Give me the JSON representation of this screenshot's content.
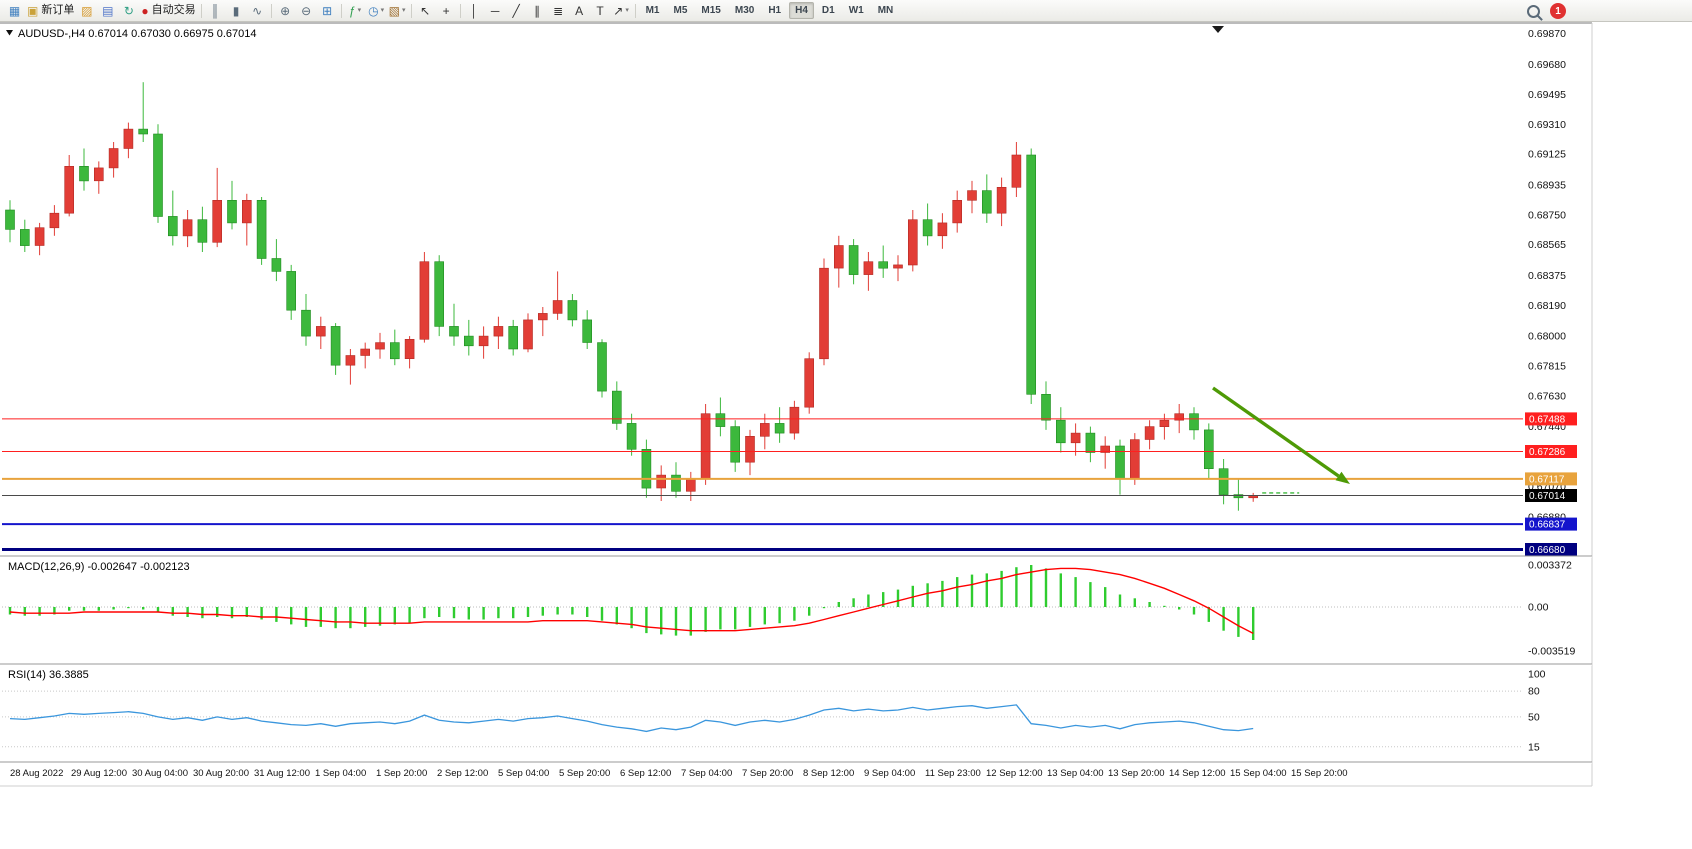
{
  "toolbar": {
    "notification_count": "1",
    "active_timeframe": "H4",
    "timeframes": [
      "M1",
      "M5",
      "M15",
      "M30",
      "H1",
      "H4",
      "D1",
      "W1",
      "MN"
    ],
    "items": [
      {
        "name": "chart-window-icon",
        "glyph": "▦",
        "color": "#3f7fbf"
      },
      {
        "name": "new-order-button",
        "glyph": "▣",
        "color": "#caa23a",
        "label": "新订单"
      },
      {
        "name": "scripts-icon",
        "glyph": "▨",
        "color": "#d79b2f"
      },
      {
        "name": "market-watch-icon",
        "glyph": "▤",
        "color": "#4f74c9"
      },
      {
        "name": "refresh-icon",
        "glyph": "↻",
        "color": "#2f9f84"
      },
      {
        "name": "autotrade-button",
        "glyph": "●",
        "color": "#cc2222",
        "label": "自动交易"
      },
      {
        "sep": true
      },
      {
        "name": "bar-chart-icon",
        "glyph": "║",
        "color": "#5a6b7a"
      },
      {
        "name": "candlestick-chart-icon",
        "glyph": "▮",
        "color": "#5a6b7a"
      },
      {
        "name": "line-chart-icon",
        "glyph": "∿",
        "color": "#5a6b7a"
      },
      {
        "sep": true
      },
      {
        "name": "zoom-in-icon",
        "glyph": "⊕",
        "color": "#5a6b7a"
      },
      {
        "name": "zoom-out-icon",
        "glyph": "⊖",
        "color": "#5a6b7a"
      },
      {
        "name": "tile-windows-icon",
        "glyph": "⊞",
        "color": "#3f7fbf"
      },
      {
        "sep": true
      },
      {
        "name": "indicators-icon",
        "glyph": "ƒ",
        "color": "#2f9f4f",
        "dropdown": true
      },
      {
        "name": "periods-icon",
        "glyph": "◷",
        "color": "#3f7fbf",
        "dropdown": true
      },
      {
        "name": "templates-icon",
        "glyph": "▧",
        "color": "#9f6f2f",
        "dropdown": true
      },
      {
        "sep": true
      },
      {
        "name": "cursor-icon",
        "glyph": "↖",
        "color": "#333333"
      },
      {
        "name": "crosshair-icon",
        "glyph": "+",
        "color": "#333333"
      },
      {
        "sep": true
      },
      {
        "name": "vertical-line-icon",
        "glyph": "│",
        "color": "#333333"
      },
      {
        "name": "horizontal-line-icon",
        "glyph": "─",
        "color": "#333333"
      },
      {
        "name": "trendline-icon",
        "glyph": "╱",
        "color": "#333333"
      },
      {
        "name": "channel-icon",
        "glyph": "∥",
        "color": "#333333"
      },
      {
        "name": "fibonacci-icon",
        "glyph": "≣",
        "color": "#333333"
      },
      {
        "name": "text-icon",
        "glyph": "A",
        "color": "#333333"
      },
      {
        "name": "label-icon",
        "glyph": "T",
        "color": "#333333"
      },
      {
        "name": "arrows-icon",
        "glyph": "↗",
        "color": "#333333",
        "dropdown": true
      },
      {
        "sep": true
      }
    ]
  },
  "chart": {
    "symbol": "AUDUSD-,H4",
    "ohlc_line": "0.67014 0.67030 0.66975 0.67014"
  },
  "chart_data": {
    "type": "candlestick",
    "title": "AUDUSD-,H4",
    "timeframe": "H4",
    "price_range": [
      0.6664,
      0.6993
    ],
    "colors": {
      "up": "#e23d36",
      "down": "#3cb83c"
    },
    "y_axis_labels": [
      "0.69870",
      "0.69680",
      "0.69495",
      "0.69310",
      "0.69125",
      "0.68935",
      "0.68750",
      "0.68565",
      "0.68375",
      "0.68190",
      "0.68000",
      "0.67815",
      "0.67630",
      "0.67440",
      "0.67070",
      "0.66880"
    ],
    "time_labels": [
      "28 Aug 2022",
      "29 Aug 12:00",
      "30 Aug 04:00",
      "30 Aug 20:00",
      "31 Aug 12:00",
      "1 Sep 04:00",
      "1 Sep 20:00",
      "2 Sep 12:00",
      "5 Sep 04:00",
      "5 Sep 20:00",
      "6 Sep 12:00",
      "7 Sep 04:00",
      "7 Sep 20:00",
      "8 Sep 12:00",
      "9 Sep 04:00",
      "11 Sep 23:00",
      "12 Sep 12:00",
      "13 Sep 04:00",
      "13 Sep 20:00",
      "14 Sep 12:00",
      "15 Sep 04:00",
      "15 Sep 20:00"
    ],
    "hlines": [
      {
        "price": 0.67488,
        "color": "#ff1f1f",
        "label": "0.67488",
        "width": 1
      },
      {
        "price": 0.67286,
        "color": "#ff1f1f",
        "label": "0.67286",
        "width": 1
      },
      {
        "price": 0.67117,
        "color": "#e8a33d",
        "label": "0.67117",
        "width": 2
      },
      {
        "price": 0.67014,
        "color": "#4a4a4a",
        "label": "0.67014",
        "width": 1,
        "label_bg": "#000000"
      },
      {
        "price": 0.66837,
        "color": "#1414cc",
        "label": "0.66837",
        "width": 2
      },
      {
        "price": 0.6668,
        "color": "#000080",
        "label": "0.66680",
        "width": 3
      }
    ],
    "candles": [
      [
        0.6878,
        0.6884,
        0.6858,
        0.6866
      ],
      [
        0.6866,
        0.6872,
        0.6852,
        0.6856
      ],
      [
        0.6856,
        0.687,
        0.685,
        0.6867
      ],
      [
        0.6867,
        0.6881,
        0.6862,
        0.6876
      ],
      [
        0.6876,
        0.6912,
        0.6874,
        0.6905
      ],
      [
        0.6905,
        0.6916,
        0.689,
        0.6896
      ],
      [
        0.6896,
        0.6908,
        0.6888,
        0.6904
      ],
      [
        0.6904,
        0.692,
        0.6898,
        0.6916
      ],
      [
        0.6916,
        0.6932,
        0.691,
        0.6928
      ],
      [
        0.6928,
        0.6957,
        0.692,
        0.6925
      ],
      [
        0.6925,
        0.6931,
        0.687,
        0.6874
      ],
      [
        0.6874,
        0.689,
        0.6856,
        0.6862
      ],
      [
        0.6862,
        0.6878,
        0.6855,
        0.6872
      ],
      [
        0.6872,
        0.688,
        0.6852,
        0.6858
      ],
      [
        0.6858,
        0.6904,
        0.6855,
        0.6884
      ],
      [
        0.6884,
        0.6896,
        0.6866,
        0.687
      ],
      [
        0.687,
        0.6888,
        0.6856,
        0.6884
      ],
      [
        0.6884,
        0.6886,
        0.6844,
        0.6848
      ],
      [
        0.6848,
        0.686,
        0.6834,
        0.684
      ],
      [
        0.684,
        0.6844,
        0.681,
        0.6816
      ],
      [
        0.6816,
        0.6826,
        0.6794,
        0.68
      ],
      [
        0.68,
        0.6812,
        0.6792,
        0.6806
      ],
      [
        0.6806,
        0.6808,
        0.6776,
        0.6782
      ],
      [
        0.6782,
        0.6792,
        0.677,
        0.6788
      ],
      [
        0.6788,
        0.6796,
        0.678,
        0.6792
      ],
      [
        0.6792,
        0.6802,
        0.6786,
        0.6796
      ],
      [
        0.6796,
        0.6804,
        0.6782,
        0.6786
      ],
      [
        0.6786,
        0.68,
        0.678,
        0.6798
      ],
      [
        0.6798,
        0.6852,
        0.6796,
        0.6846
      ],
      [
        0.6846,
        0.685,
        0.68,
        0.6806
      ],
      [
        0.6806,
        0.682,
        0.6794,
        0.68
      ],
      [
        0.68,
        0.681,
        0.6788,
        0.6794
      ],
      [
        0.6794,
        0.6806,
        0.6786,
        0.68
      ],
      [
        0.68,
        0.6812,
        0.6792,
        0.6806
      ],
      [
        0.6806,
        0.681,
        0.6788,
        0.6792
      ],
      [
        0.6792,
        0.6814,
        0.679,
        0.681
      ],
      [
        0.681,
        0.6818,
        0.68,
        0.6814
      ],
      [
        0.6814,
        0.684,
        0.681,
        0.6822
      ],
      [
        0.6822,
        0.6826,
        0.6806,
        0.681
      ],
      [
        0.681,
        0.6816,
        0.6792,
        0.6796
      ],
      [
        0.6796,
        0.6798,
        0.6762,
        0.6766
      ],
      [
        0.6766,
        0.6772,
        0.6742,
        0.6746
      ],
      [
        0.6746,
        0.6752,
        0.6726,
        0.673
      ],
      [
        0.673,
        0.6736,
        0.67,
        0.6706
      ],
      [
        0.6706,
        0.672,
        0.6698,
        0.6714
      ],
      [
        0.6714,
        0.6722,
        0.67,
        0.6704
      ],
      [
        0.6704,
        0.6716,
        0.6698,
        0.6712
      ],
      [
        0.6712,
        0.6758,
        0.6708,
        0.6752
      ],
      [
        0.6752,
        0.6762,
        0.6738,
        0.6744
      ],
      [
        0.6744,
        0.6748,
        0.6716,
        0.6722
      ],
      [
        0.6722,
        0.6742,
        0.6714,
        0.6738
      ],
      [
        0.6738,
        0.6752,
        0.673,
        0.6746
      ],
      [
        0.6746,
        0.6756,
        0.6734,
        0.674
      ],
      [
        0.674,
        0.676,
        0.6736,
        0.6756
      ],
      [
        0.6756,
        0.679,
        0.6752,
        0.6786
      ],
      [
        0.6786,
        0.6848,
        0.6782,
        0.6842
      ],
      [
        0.6842,
        0.6862,
        0.683,
        0.6856
      ],
      [
        0.6856,
        0.686,
        0.6832,
        0.6838
      ],
      [
        0.6838,
        0.6852,
        0.6828,
        0.6846
      ],
      [
        0.6846,
        0.6856,
        0.6836,
        0.6842
      ],
      [
        0.6842,
        0.685,
        0.6834,
        0.6844
      ],
      [
        0.6844,
        0.6878,
        0.684,
        0.6872
      ],
      [
        0.6872,
        0.6882,
        0.6856,
        0.6862
      ],
      [
        0.6862,
        0.6876,
        0.6854,
        0.687
      ],
      [
        0.687,
        0.689,
        0.6864,
        0.6884
      ],
      [
        0.6884,
        0.6896,
        0.6876,
        0.689
      ],
      [
        0.689,
        0.69,
        0.687,
        0.6876
      ],
      [
        0.6876,
        0.6898,
        0.6868,
        0.6892
      ],
      [
        0.6892,
        0.692,
        0.6886,
        0.6912
      ],
      [
        0.6912,
        0.6916,
        0.6758,
        0.6764
      ],
      [
        0.6764,
        0.6772,
        0.6742,
        0.6748
      ],
      [
        0.6748,
        0.6756,
        0.6728,
        0.6734
      ],
      [
        0.6734,
        0.6746,
        0.6726,
        0.674
      ],
      [
        0.674,
        0.6744,
        0.6722,
        0.6728
      ],
      [
        0.6728,
        0.6738,
        0.6718,
        0.6732
      ],
      [
        0.6732,
        0.6736,
        0.6702,
        0.6712
      ],
      [
        0.6712,
        0.674,
        0.6708,
        0.6736
      ],
      [
        0.6736,
        0.6748,
        0.673,
        0.6744
      ],
      [
        0.6744,
        0.6752,
        0.6736,
        0.6748
      ],
      [
        0.6748,
        0.6758,
        0.674,
        0.6752
      ],
      [
        0.6752,
        0.6756,
        0.6736,
        0.6742
      ],
      [
        0.6742,
        0.6746,
        0.6712,
        0.6718
      ],
      [
        0.6718,
        0.6724,
        0.6696,
        0.6702
      ],
      [
        0.6702,
        0.6712,
        0.6692,
        0.67
      ],
      [
        0.67,
        0.6703,
        0.66975,
        0.67014
      ]
    ],
    "indicators": [
      {
        "type": "bar+line",
        "name": "MACD(12,26,9)",
        "values_label": "-0.002647 -0.002123",
        "axis_labels": [
          "0.003372",
          "0.00",
          "-0.003519"
        ],
        "axis_values": [
          0.003372,
          0,
          -0.003519
        ],
        "colors": {
          "histogram": "#2fcc2f",
          "signal": "#ff0000"
        },
        "histogram": [
          -0.0006,
          -0.0007,
          -0.0007,
          -0.0006,
          -0.0003,
          -0.0003,
          -0.0003,
          -0.0002,
          -0.0001,
          -0.0002,
          -0.0004,
          -0.0007,
          -0.0008,
          -0.0009,
          -0.0008,
          -0.0009,
          -0.0008,
          -0.001,
          -0.0012,
          -0.0014,
          -0.0016,
          -0.0016,
          -0.0017,
          -0.0017,
          -0.0016,
          -0.0015,
          -0.0014,
          -0.0013,
          -0.0009,
          -0.0008,
          -0.0009,
          -0.001,
          -0.001,
          -0.0009,
          -0.0009,
          -0.0008,
          -0.0007,
          -0.0006,
          -0.0006,
          -0.0008,
          -0.0011,
          -0.0014,
          -0.0017,
          -0.0021,
          -0.0022,
          -0.0023,
          -0.0023,
          -0.002,
          -0.0018,
          -0.0018,
          -0.0016,
          -0.0014,
          -0.0013,
          -0.0011,
          -0.0007,
          -0.0001,
          0.0004,
          0.0007,
          0.001,
          0.0012,
          0.0014,
          0.0017,
          0.0019,
          0.0021,
          0.0024,
          0.0026,
          0.0027,
          0.0029,
          0.0032,
          0.00337,
          0.0031,
          0.0027,
          0.0024,
          0.002,
          0.0016,
          0.001,
          0.0007,
          0.0004,
          0.0001,
          -0.0002,
          -0.0006,
          -0.0012,
          -0.0019,
          -0.0024,
          -0.002647
        ],
        "signal": [
          -0.0004,
          -0.0005,
          -0.0005,
          -0.0005,
          -0.0005,
          -0.0004,
          -0.0004,
          -0.0004,
          -0.0004,
          -0.0004,
          -0.0004,
          -0.0005,
          -0.0005,
          -0.0006,
          -0.0006,
          -0.0007,
          -0.0007,
          -0.0008,
          -0.0008,
          -0.0009,
          -0.001,
          -0.0011,
          -0.0012,
          -0.0012,
          -0.0013,
          -0.0013,
          -0.0013,
          -0.0013,
          -0.0012,
          -0.0012,
          -0.0012,
          -0.0012,
          -0.0012,
          -0.0012,
          -0.0012,
          -0.0012,
          -0.0011,
          -0.0011,
          -0.0011,
          -0.0011,
          -0.0012,
          -0.0013,
          -0.0014,
          -0.0016,
          -0.0017,
          -0.0018,
          -0.0019,
          -0.0019,
          -0.0019,
          -0.0019,
          -0.0018,
          -0.0017,
          -0.0016,
          -0.0015,
          -0.0013,
          -0.001,
          -0.0007,
          -0.0004,
          -0.0001,
          0.0002,
          0.0005,
          0.0008,
          0.0011,
          0.0013,
          0.0016,
          0.0018,
          0.0021,
          0.0023,
          0.0026,
          0.0028,
          0.003,
          0.0031,
          0.0031,
          0.003,
          0.0028,
          0.0026,
          0.0023,
          0.0019,
          0.0015,
          0.001,
          0.0005,
          -0.0001,
          -0.0008,
          -0.0015,
          -0.002123
        ]
      },
      {
        "type": "line",
        "name": "RSI(14)",
        "values_label": "36.3885",
        "axis_labels": [
          "100",
          "80",
          "50",
          "15"
        ],
        "axis_values": [
          100,
          80,
          50,
          15
        ],
        "levels": [
          80,
          50,
          15
        ],
        "color": "#3a96dd",
        "values": [
          48,
          47,
          49,
          51,
          54,
          53,
          54,
          55,
          56,
          54,
          50,
          47,
          49,
          46,
          50,
          47,
          49,
          45,
          43,
          41,
          40,
          42,
          39,
          42,
          43,
          44,
          42,
          45,
          52,
          46,
          44,
          43,
          45,
          47,
          45,
          48,
          49,
          51,
          48,
          45,
          41,
          38,
          36,
          33,
          37,
          35,
          38,
          46,
          44,
          40,
          44,
          46,
          44,
          47,
          52,
          58,
          60,
          57,
          59,
          57,
          58,
          61,
          58,
          60,
          62,
          63,
          60,
          62,
          64,
          42,
          40,
          37,
          40,
          38,
          40,
          36,
          41,
          43,
          44,
          45,
          43,
          39,
          35,
          34,
          36.39
        ]
      }
    ],
    "annotations": [
      {
        "type": "arrow",
        "color": "#4e9a06",
        "note": "down-right trend arrow",
        "from_price": 0.6766,
        "to_price": 0.6705
      }
    ]
  }
}
